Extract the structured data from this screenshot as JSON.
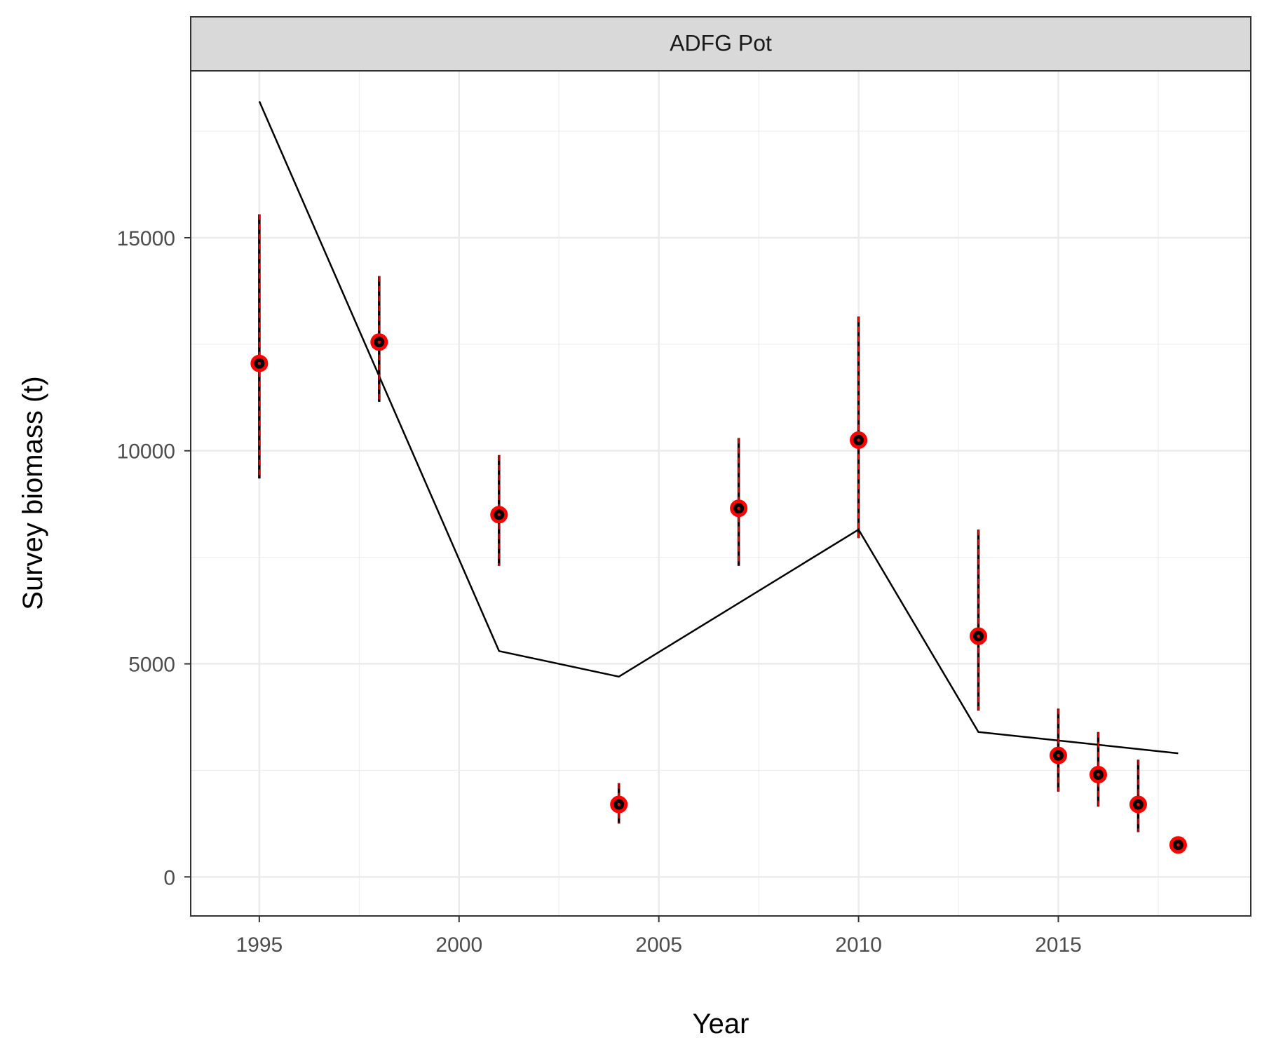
{
  "chart_data": {
    "type": "scatter",
    "facet_label": "ADFG Pot",
    "xlabel": "Year",
    "ylabel": "Survey biomass (t)",
    "xlim": [
      1993.3,
      2019.8
    ],
    "ylim": [
      -900,
      18900
    ],
    "x_ticks": [
      1995,
      2000,
      2005,
      2010,
      2015
    ],
    "y_ticks": [
      0,
      5000,
      10000,
      15000
    ],
    "grid": true,
    "legend": "none",
    "series": [
      {
        "kind": "points",
        "color": "#ff0000",
        "center_color": "#000000",
        "x": [
          1995,
          1998,
          2001,
          2004,
          2007,
          2010,
          2013,
          2015,
          2016,
          2017,
          2018
        ],
        "y": [
          12050,
          12550,
          8500,
          1700,
          8650,
          10250,
          5650,
          2850,
          2400,
          1700,
          750
        ],
        "lower": [
          9350,
          11150,
          7300,
          1250,
          7300,
          7950,
          3900,
          2000,
          1650,
          1050,
          750
        ],
        "upper": [
          15550,
          14100,
          9900,
          2200,
          10300,
          13150,
          8150,
          3950,
          3400,
          2750,
          750
        ]
      },
      {
        "kind": "line",
        "color": "#000000",
        "x": [
          1995,
          2001,
          2004,
          2010,
          2013,
          2018
        ],
        "y": [
          18200,
          5300,
          4700,
          8150,
          3400,
          2900
        ]
      }
    ]
  }
}
